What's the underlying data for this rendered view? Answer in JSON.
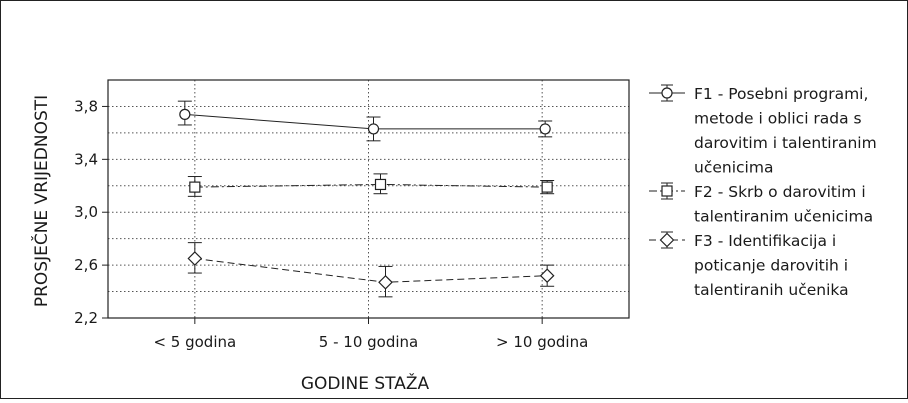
{
  "chart_data": {
    "type": "line",
    "xlabel": "GODINE STAŽA",
    "ylabel": "PROSJEČNE VRIJEDNOSTI",
    "categories": [
      "< 5 godina",
      "5 - 10 godina",
      "> 10 godina"
    ],
    "ylim": [
      2.2,
      4.0
    ],
    "yticks": [
      "3,8",
      "3,4",
      "3,0",
      "2,6",
      "2,2"
    ],
    "ytick_values": [
      3.8,
      3.4,
      3.0,
      2.6,
      2.2
    ],
    "grid": true,
    "legend_position": "right",
    "series": [
      {
        "name": "F1 - Posebni programi, metode i oblici rada s darovitim i talentiranim učenicima",
        "legend_lines": [
          "F1 - Posebni programi,",
          "metode i oblici rada s",
          "darovitim i talentiranim",
          "učenicima"
        ],
        "marker": "circle",
        "line_style": "solid",
        "values": [
          3.74,
          3.63,
          3.63
        ],
        "err_low": [
          3.66,
          3.54,
          3.57
        ],
        "err_high": [
          3.84,
          3.72,
          3.69
        ]
      },
      {
        "name": "F2 - Skrb o darovitim i talentiranim učenicima",
        "legend_lines": [
          "F2 - Skrb o darovitim i",
          "talentiranim učenicima"
        ],
        "marker": "square",
        "line_style": "dashdot",
        "values": [
          3.19,
          3.21,
          3.19
        ],
        "err_low": [
          3.12,
          3.14,
          3.14
        ],
        "err_high": [
          3.27,
          3.29,
          3.24
        ]
      },
      {
        "name": "F3 - Identifikacija i poticanje darovitih i talentiranih učenika",
        "legend_lines": [
          "F3 - Identifikacija i",
          "poticanje darovitih i",
          "talentiranih učenika"
        ],
        "marker": "diamond",
        "line_style": "dashed",
        "values": [
          2.65,
          2.47,
          2.52
        ],
        "err_low": [
          2.54,
          2.36,
          2.44
        ],
        "err_high": [
          2.77,
          2.59,
          2.6
        ]
      }
    ]
  }
}
